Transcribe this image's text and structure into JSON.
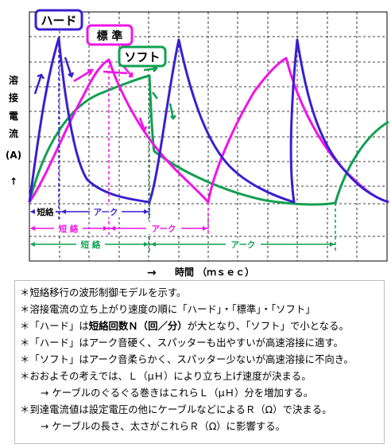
{
  "colors": {
    "hard": "#3a1fd0",
    "standard": "#f014e8",
    "soft": "#10a050",
    "grid": "#000000",
    "grid_minor": "#8a8a8a"
  },
  "figure": {
    "y_axis_chars": [
      "溶",
      "接",
      "電",
      "流"
    ],
    "y_axis_unit": "(A)",
    "y_axis_arrow": "↑",
    "x_axis_arrow": "→",
    "x_axis_label": "時間 （ｍｓｅｃ）",
    "labels": {
      "hard": "ハード",
      "standard": "標 準",
      "soft": "ソフト"
    },
    "hard_row": {
      "short": "短絡",
      "arc": "アーク"
    },
    "standard_row": {
      "short": "短 絡",
      "arc": "アーク"
    },
    "soft_row": {
      "short": "短 絡",
      "arc": "アーク"
    }
  },
  "notes": {
    "l1": "＊短絡移行の波形制御モデルを示す。",
    "l2": "＊溶接電流の立ち上がり速度の順に「ハード」・「標準」・「ソフト」",
    "l3a": "＊「ハード」は",
    "l3b": "短絡回数Ｎ（回／分）",
    "l3c": "が大となり、「ソフト」で小となる。",
    "l4": "＊「ハード」はアーク音硬く、スパッターも出やすいが高速溶接に適す。",
    "l5": "＊「ソフト」はアーク音柔らかく、スパッター少ないが高速溶接に不向き。",
    "l6": "＊おおよその考えでは、Ｌ（μＨ）により立ち上げ速度が決まる。",
    "l7": "→ ケーブルのぐるぐる巻きはこれらＬ（μＨ）分を増加する。",
    "l8": "＊到達電流値は設定電圧の他にケーブルなどによるＲ（Ω）で決まる。",
    "l9": "→ ケーブルの長さ、太さがこれらＲ（Ω）に影響する。"
  }
}
